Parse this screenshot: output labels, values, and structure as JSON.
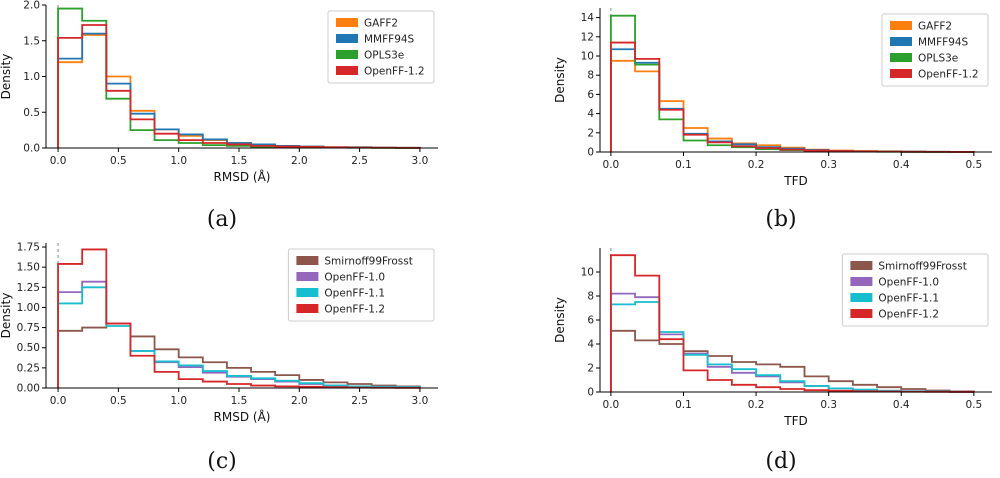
{
  "chart_data": [
    {
      "type": "histogram",
      "caption": "(a)",
      "xlabel": "RMSD (Å)",
      "ylabel": "Density",
      "xlim": [
        -0.1,
        3.15
      ],
      "ylim": [
        0,
        2.0
      ],
      "xticks": [
        "0.0",
        "0.5",
        "1.0",
        "1.5",
        "2.0",
        "2.5",
        "3.0"
      ],
      "yticks": [
        "0.0",
        "0.5",
        "1.0",
        "1.5",
        "2.0"
      ],
      "bin_edges": [
        0,
        0.2,
        0.4,
        0.6,
        0.8,
        1.0,
        1.2,
        1.4,
        1.6,
        1.8,
        2.0,
        2.2,
        2.4,
        2.6,
        2.8,
        3.0
      ],
      "legend_position": "top-right",
      "series": [
        {
          "name": "GAFF2",
          "color": "#ff7f0e",
          "values": [
            1.2,
            1.58,
            1.0,
            0.52,
            0.26,
            0.17,
            0.11,
            0.07,
            0.05,
            0.03,
            0.02,
            0.01,
            0.01,
            0.005,
            0.003
          ]
        },
        {
          "name": "MMFF94S",
          "color": "#1f77b4",
          "values": [
            1.25,
            1.6,
            0.9,
            0.48,
            0.26,
            0.19,
            0.12,
            0.07,
            0.05,
            0.03,
            0.02,
            0.01,
            0.01,
            0.005,
            0.003
          ]
        },
        {
          "name": "OPLS3e",
          "color": "#2ca02c",
          "values": [
            1.95,
            1.78,
            0.69,
            0.25,
            0.11,
            0.07,
            0.04,
            0.03,
            0.02,
            0.01,
            0.01,
            0.005,
            0.003,
            0.002,
            0.001
          ]
        },
        {
          "name": "OpenFF-1.2",
          "color": "#d62728",
          "values": [
            1.54,
            1.72,
            0.8,
            0.4,
            0.2,
            0.11,
            0.07,
            0.05,
            0.03,
            0.02,
            0.015,
            0.01,
            0.005,
            0.003,
            0.002
          ]
        }
      ]
    },
    {
      "type": "histogram",
      "caption": "(b)",
      "xlabel": "TFD",
      "ylabel": "Density",
      "xlim": [
        -0.015,
        0.525
      ],
      "ylim": [
        0,
        15
      ],
      "xticks": [
        "0.0",
        "0.1",
        "0.2",
        "0.3",
        "0.4",
        "0.5"
      ],
      "yticks": [
        "0",
        "2",
        "4",
        "6",
        "8",
        "10",
        "12",
        "14"
      ],
      "bin_edges": [
        0,
        0.0333,
        0.0667,
        0.1,
        0.1333,
        0.1667,
        0.2,
        0.2333,
        0.2667,
        0.3,
        0.3333,
        0.3667,
        0.4,
        0.4333,
        0.4667,
        0.5
      ],
      "legend_position": "top-right",
      "series": [
        {
          "name": "GAFF2",
          "color": "#ff7f0e",
          "values": [
            9.5,
            8.4,
            5.3,
            2.5,
            1.4,
            0.9,
            0.7,
            0.45,
            0.25,
            0.15,
            0.1,
            0.07,
            0.04,
            0.02,
            0.01
          ]
        },
        {
          "name": "MMFF94S",
          "color": "#1f77b4",
          "values": [
            10.7,
            9.3,
            4.5,
            1.9,
            1.1,
            0.8,
            0.5,
            0.35,
            0.2,
            0.12,
            0.08,
            0.05,
            0.03,
            0.02,
            0.01
          ]
        },
        {
          "name": "OPLS3e",
          "color": "#2ca02c",
          "values": [
            14.2,
            9.1,
            3.4,
            1.2,
            0.7,
            0.5,
            0.3,
            0.2,
            0.12,
            0.08,
            0.05,
            0.03,
            0.02,
            0.01,
            0.005
          ]
        },
        {
          "name": "OpenFF-1.2",
          "color": "#d62728",
          "values": [
            11.4,
            9.7,
            4.4,
            1.8,
            1.0,
            0.6,
            0.4,
            0.25,
            0.15,
            0.1,
            0.06,
            0.04,
            0.02,
            0.01,
            0.005
          ]
        }
      ]
    },
    {
      "type": "histogram",
      "caption": "(c)",
      "xlabel": "RMSD (Å)",
      "ylabel": "Density",
      "xlim": [
        -0.1,
        3.15
      ],
      "ylim": [
        0,
        1.8
      ],
      "xticks": [
        "0.0",
        "0.5",
        "1.0",
        "1.5",
        "2.0",
        "2.5",
        "3.0"
      ],
      "yticks": [
        "0.00",
        "0.25",
        "0.50",
        "0.75",
        "1.00",
        "1.25",
        "1.50",
        "1.75"
      ],
      "bin_edges": [
        0,
        0.2,
        0.4,
        0.6,
        0.8,
        1.0,
        1.2,
        1.4,
        1.6,
        1.8,
        2.0,
        2.2,
        2.4,
        2.6,
        2.8,
        3.0
      ],
      "legend_position": "top-right",
      "series": [
        {
          "name": "Smirnoff99Frosst",
          "color": "#8c564b",
          "values": [
            0.71,
            0.75,
            0.8,
            0.64,
            0.48,
            0.38,
            0.32,
            0.25,
            0.2,
            0.16,
            0.1,
            0.07,
            0.05,
            0.03,
            0.02
          ]
        },
        {
          "name": "OpenFF-1.0",
          "color": "#9467bd",
          "values": [
            1.19,
            1.32,
            0.8,
            0.46,
            0.32,
            0.26,
            0.19,
            0.14,
            0.11,
            0.08,
            0.05,
            0.03,
            0.02,
            0.015,
            0.01
          ]
        },
        {
          "name": "OpenFF-1.1",
          "color": "#17becf",
          "values": [
            1.05,
            1.25,
            0.77,
            0.46,
            0.33,
            0.28,
            0.21,
            0.15,
            0.12,
            0.09,
            0.06,
            0.03,
            0.02,
            0.015,
            0.01
          ]
        },
        {
          "name": "OpenFF-1.2",
          "color": "#d62728",
          "values": [
            1.54,
            1.72,
            0.8,
            0.4,
            0.2,
            0.11,
            0.08,
            0.05,
            0.03,
            0.02,
            0.015,
            0.01,
            0.005,
            0.003,
            0.002
          ]
        }
      ]
    },
    {
      "type": "histogram",
      "caption": "(d)",
      "xlabel": "TFD",
      "ylabel": "Density",
      "xlim": [
        -0.015,
        0.525
      ],
      "ylim": [
        0,
        12
      ],
      "xticks": [
        "0.0",
        "0.1",
        "0.2",
        "0.3",
        "0.4",
        "0.5"
      ],
      "yticks": [
        "0",
        "2",
        "4",
        "6",
        "8",
        "10"
      ],
      "bin_edges": [
        0,
        0.0333,
        0.0667,
        0.1,
        0.1333,
        0.1667,
        0.2,
        0.2333,
        0.2667,
        0.3,
        0.3333,
        0.3667,
        0.4,
        0.4333,
        0.4667,
        0.5
      ],
      "legend_position": "top-right",
      "series": [
        {
          "name": "Smirnoff99Frosst",
          "color": "#8c564b",
          "values": [
            5.1,
            4.3,
            4.0,
            3.4,
            3.0,
            2.5,
            2.3,
            2.1,
            1.3,
            0.9,
            0.6,
            0.4,
            0.25,
            0.12,
            0.05
          ]
        },
        {
          "name": "OpenFF-1.0",
          "color": "#9467bd",
          "values": [
            8.2,
            7.9,
            4.8,
            3.2,
            2.1,
            1.6,
            1.3,
            0.8,
            0.5,
            0.3,
            0.18,
            0.1,
            0.06,
            0.03,
            0.01
          ]
        },
        {
          "name": "OpenFF-1.1",
          "color": "#17becf",
          "values": [
            7.3,
            7.5,
            5.0,
            3.1,
            2.3,
            1.9,
            1.4,
            0.9,
            0.5,
            0.3,
            0.2,
            0.1,
            0.06,
            0.03,
            0.01
          ]
        },
        {
          "name": "OpenFF-1.2",
          "color": "#d62728",
          "values": [
            11.4,
            9.7,
            4.4,
            1.8,
            1.0,
            0.6,
            0.4,
            0.25,
            0.15,
            0.1,
            0.06,
            0.04,
            0.02,
            0.01,
            0.005
          ]
        }
      ]
    }
  ]
}
